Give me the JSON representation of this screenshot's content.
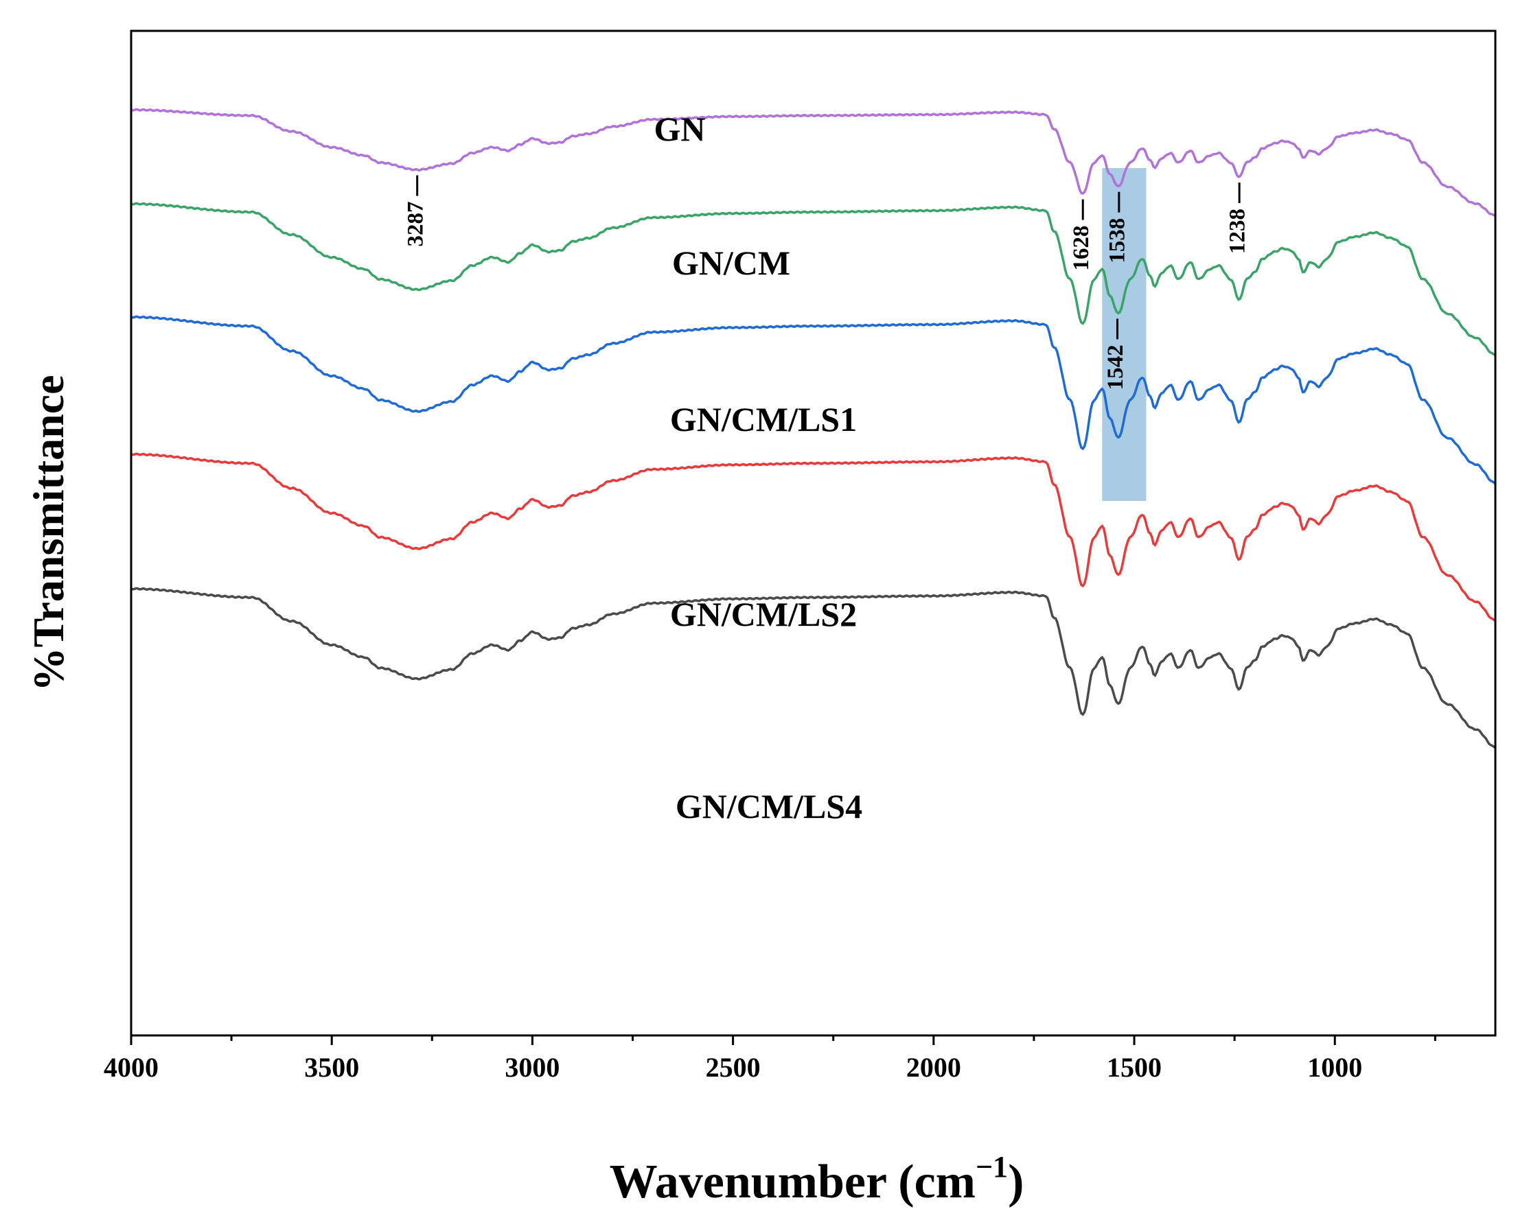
{
  "chart_data": {
    "type": "line",
    "xlabel": "Wavenumber (cm",
    "xlabel_superscript": "−1",
    "xlabel_close": ")",
    "ylabel": "%Transmittance",
    "xlim": [
      4000,
      600
    ],
    "x_reversed": true,
    "y_ticks_labeled": false,
    "grid": false,
    "x_ticks": [
      {
        "value": 4000,
        "label": "4000"
      },
      {
        "value": 3500,
        "label": "3500"
      },
      {
        "value": 3000,
        "label": "3000"
      },
      {
        "value": 2500,
        "label": "2500"
      },
      {
        "value": 2000,
        "label": "2000"
      },
      {
        "value": 1500,
        "label": "1500"
      },
      {
        "value": 1000,
        "label": "1000"
      }
    ],
    "highlight_band": {
      "x_from": 1580,
      "x_to": 1470,
      "color": "#a9cbe4"
    },
    "series": [
      {
        "name": "GN",
        "color": "#b072d9",
        "offset": 160
      },
      {
        "name": "GN/CM",
        "color": "#3aa468",
        "offset": 297
      },
      {
        "name": "GN/CM/LS1",
        "color": "#1f6bd6",
        "offset": 462
      },
      {
        "name": "GN/CM/LS2",
        "color": "#e83a3a",
        "offset": 662
      },
      {
        "name": "GN/CM/LS4",
        "color": "#4a4a4a",
        "offset": 858
      }
    ],
    "peak_annotations": [
      {
        "label": "3287",
        "x": 3287,
        "series": "GN"
      },
      {
        "label": "1628",
        "x": 1628,
        "series": "GN"
      },
      {
        "label": "1538",
        "x": 1538,
        "series": "GN"
      },
      {
        "label": "1238",
        "x": 1238,
        "series": "GN"
      },
      {
        "label": "1542",
        "x": 1542,
        "series": "GN/CM"
      }
    ]
  },
  "colors": {
    "axis": "#000000",
    "background": "#ffffff"
  }
}
